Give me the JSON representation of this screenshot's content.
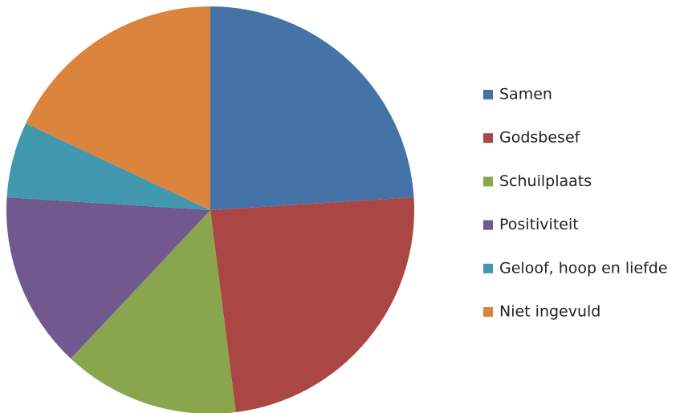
{
  "chart_data": {
    "type": "pie",
    "categories": [
      "Samen",
      "Godsbesef",
      "Schuilplaats",
      "Positiviteit",
      "Geloof, hoop en liefde",
      "Niet ingevuld"
    ],
    "values": [
      24,
      24,
      14,
      14,
      6,
      18
    ],
    "colors": [
      "#4572a7",
      "#aa4643",
      "#89a54e",
      "#71588f",
      "#4198af",
      "#db843d"
    ],
    "legend": "right"
  }
}
